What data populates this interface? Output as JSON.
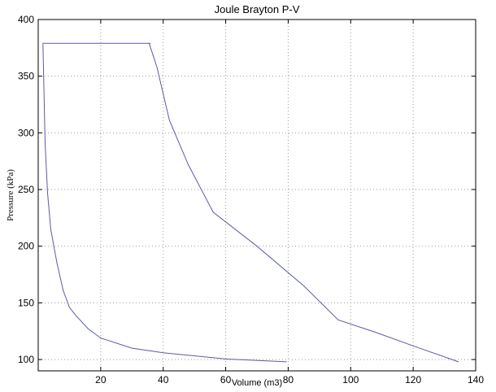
{
  "chart_data": {
    "type": "line",
    "title": "Joule Brayton P-V",
    "xlabel": "Volume (m3)",
    "ylabel": "Pressure (kPa)",
    "xlim": [
      0,
      140
    ],
    "ylim": [
      90,
      400
    ],
    "xticks": [
      20,
      40,
      60,
      80,
      100,
      120,
      140
    ],
    "yticks": [
      100,
      150,
      200,
      250,
      300,
      350,
      400
    ],
    "grid": true,
    "line_color": "#5a5aaa",
    "series": [
      {
        "points": [
          [
            79.5,
            98
          ],
          [
            60,
            100.5
          ],
          [
            40,
            106
          ],
          [
            30,
            110
          ],
          [
            20,
            119
          ],
          [
            16,
            127
          ],
          [
            12,
            139
          ],
          [
            10,
            146
          ],
          [
            8,
            161
          ],
          [
            6,
            185
          ],
          [
            4,
            215
          ],
          [
            3,
            247
          ],
          [
            2.2,
            290
          ],
          [
            1.5,
            379
          ]
        ]
      },
      {
        "points": [
          [
            1.5,
            379
          ],
          [
            36,
            379
          ]
        ]
      },
      {
        "points": [
          [
            35.5,
            379
          ],
          [
            38,
            358
          ],
          [
            42,
            311
          ],
          [
            48,
            272
          ],
          [
            56,
            230
          ],
          [
            70,
            200
          ],
          [
            85,
            165
          ],
          [
            96,
            135
          ],
          [
            108,
            124
          ],
          [
            120,
            112
          ],
          [
            134.5,
            98
          ]
        ]
      }
    ]
  }
}
